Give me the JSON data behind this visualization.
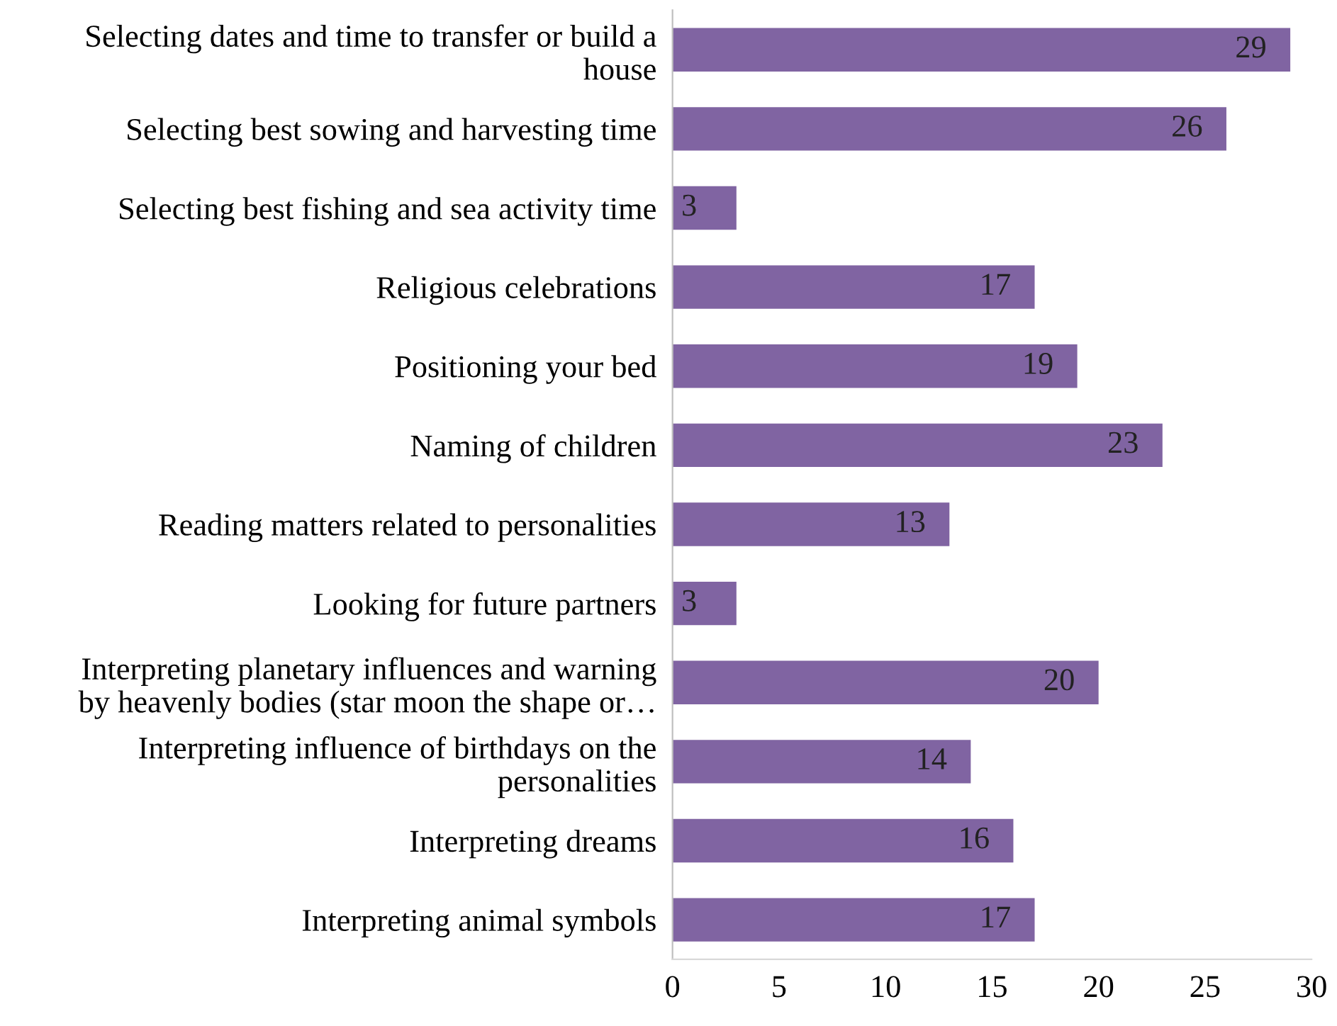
{
  "chart_data": {
    "type": "bar",
    "orientation": "horizontal",
    "categories": [
      "Selecting dates and time to transfer or build a\nhouse",
      "Selecting best sowing and harvesting time",
      "Selecting best fishing and sea activity time",
      "Religious celebrations",
      "Positioning your bed",
      "Naming of children",
      "Reading matters related to personalities",
      "Looking for future partners",
      "Interpreting planetary influences and warning\nby heavenly bodies (star moon the shape or…",
      "Interpreting influence of birthdays on the\npersonalities",
      "Interpreting dreams",
      "Interpreting animal symbols"
    ],
    "values": [
      29,
      26,
      3,
      17,
      19,
      23,
      13,
      3,
      20,
      14,
      16,
      17
    ],
    "color": "#8064a2",
    "xlim": [
      0,
      30
    ],
    "xticks": [
      0,
      5,
      10,
      15,
      20,
      25,
      30
    ],
    "data_labels": true,
    "grid": false,
    "legend": false
  }
}
